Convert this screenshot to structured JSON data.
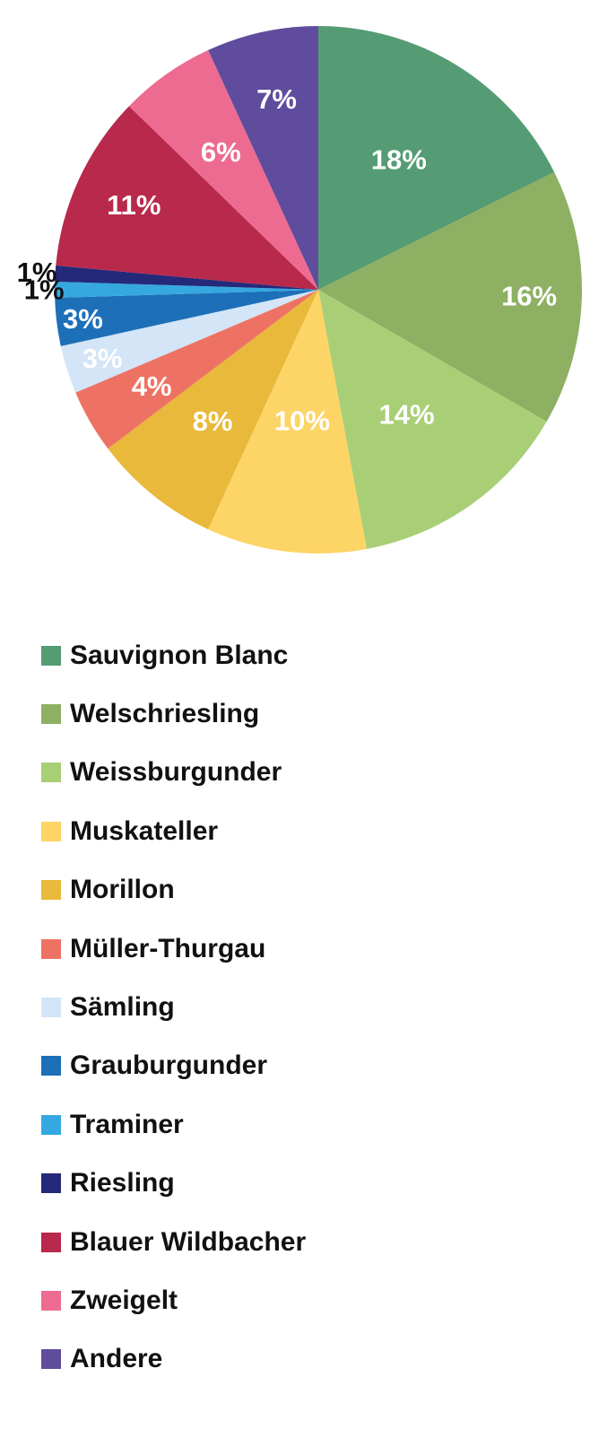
{
  "chart_data": {
    "type": "pie",
    "title": "",
    "legend_position": "bottom",
    "slices": [
      {
        "label": "Sauvignon Blanc",
        "value": 18,
        "display": "18%",
        "color": "#559c74"
      },
      {
        "label": "Welschriesling",
        "value": 16,
        "display": "16%",
        "color": "#8db063"
      },
      {
        "label": "Weissburgunder",
        "value": 14,
        "display": "14%",
        "color": "#a9cf76"
      },
      {
        "label": "Muskateller",
        "value": 10,
        "display": "10%",
        "color": "#fdd466"
      },
      {
        "label": "Morillon",
        "value": 8,
        "display": "8%",
        "color": "#e9b93b"
      },
      {
        "label": "Müller-Thurgau",
        "value": 4,
        "display": "4%",
        "color": "#ee7264"
      },
      {
        "label": "Sämling",
        "value": 3,
        "display": "3%",
        "color": "#d3e5f7"
      },
      {
        "label": "Grauburgunder",
        "value": 3,
        "display": "3%",
        "color": "#1d6fb8"
      },
      {
        "label": "Traminer",
        "value": 1,
        "display": "1%",
        "color": "#35a8e0"
      },
      {
        "label": "Riesling",
        "value": 1,
        "display": "1%",
        "color": "#25297a"
      },
      {
        "label": "Blauer Wildbacher",
        "value": 11,
        "display": "11%",
        "color": "#b8294b"
      },
      {
        "label": "Zweigelt",
        "value": 6,
        "display": "6%",
        "color": "#ed6b91"
      },
      {
        "label": "Andere",
        "value": 7,
        "display": "7%",
        "color": "#5f4c9c"
      }
    ]
  }
}
